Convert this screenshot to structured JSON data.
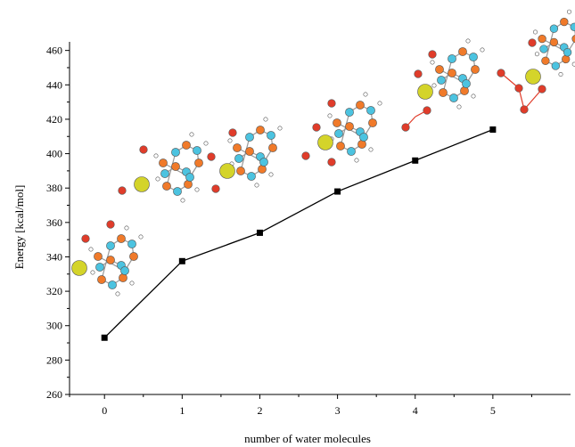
{
  "chart_data": {
    "type": "line",
    "xlabel": "number of water molecules",
    "ylabel": "Energy [kcal/mol]",
    "x": [
      0,
      1,
      2,
      3,
      4,
      5
    ],
    "x_ticks": [
      "0",
      "1",
      "2",
      "3",
      "4",
      "5"
    ],
    "y_ticks": [
      "260",
      "280",
      "300",
      "320",
      "340",
      "360",
      "380",
      "400",
      "420",
      "440",
      "460"
    ],
    "xlim": [
      -0.45,
      6.0
    ],
    "ylim": [
      260,
      465
    ],
    "series": [
      {
        "values": [
          293,
          337.5,
          354,
          378,
          396,
          414
        ],
        "marker": "square",
        "color": "#000000"
      }
    ],
    "grid": false,
    "colors": {
      "oxygen": "#e03c2a",
      "hydrogen": "#ffffff",
      "carbon_ring": "#f07a2a",
      "nitrogen_ring": "#4cc3e0",
      "metal": "#d4d42a"
    }
  }
}
